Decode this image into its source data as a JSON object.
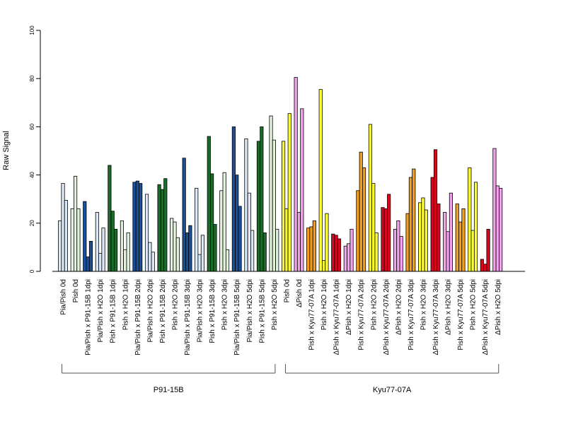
{
  "chart_data": {
    "type": "bar",
    "title": "",
    "xlabel": "",
    "ylabel": "Raw Signal",
    "ylim": [
      0,
      100
    ],
    "yticks": [
      0,
      20,
      40,
      60,
      80,
      100
    ],
    "grid": false,
    "legend": "none",
    "colors": {
      "light_blue": "#dbe8f7",
      "dark_blue": "#1a4f9a",
      "light_green": "#e2f2dc",
      "dark_green": "#1c6b2a",
      "yellow": "#ffff33",
      "orange": "#f49f1c",
      "red": "#d7081e",
      "pink": "#f3a3ec"
    },
    "categories": [
      {
        "label": "Pia/Pish 0d",
        "color": "light_blue",
        "values": [
          21,
          36.5,
          29.5
        ]
      },
      {
        "label": "Pish 0d",
        "color": "light_green",
        "values": [
          26,
          39.5,
          26
        ]
      },
      {
        "label": "Pia/Pish x P91-15B 1dpi",
        "color": "dark_blue",
        "values": [
          29,
          6,
          12.5
        ]
      },
      {
        "label": "Pia/Pish x H2O 1dpi",
        "color": "light_blue",
        "values": [
          24.5,
          7.5,
          18
        ]
      },
      {
        "label": "Pish x P91-15B 1dpi",
        "color": "dark_green",
        "values": [
          44,
          25,
          17.5
        ]
      },
      {
        "label": "Pish x H2O 1dpi",
        "color": "light_green",
        "values": [
          21,
          9,
          16
        ]
      },
      {
        "label": "Pia/Pish x P91-15B 2dpi",
        "color": "dark_blue",
        "values": [
          37,
          37.5,
          36.5
        ]
      },
      {
        "label": "Pia/Pish x H2O 2dpi",
        "color": "light_blue",
        "values": [
          32,
          12,
          8
        ]
      },
      {
        "label": "Pish x P91-15B 2dpi",
        "color": "dark_green",
        "values": [
          36,
          34,
          38.5
        ]
      },
      {
        "label": "Pish x H2O 2dpi",
        "color": "light_green",
        "values": [
          22,
          20.5,
          14
        ]
      },
      {
        "label": "Pia/Pish x P91-15B 3dpi",
        "color": "dark_blue",
        "values": [
          47,
          16,
          19
        ]
      },
      {
        "label": "Pia/Pish x H2O 3dpi",
        "color": "light_blue",
        "values": [
          34.5,
          7,
          15
        ]
      },
      {
        "label": "Pish x P91-15B 3dpi",
        "color": "dark_green",
        "values": [
          56,
          40.5,
          19.5
        ]
      },
      {
        "label": "Pish x H2O 3dpi",
        "color": "light_green",
        "values": [
          33.5,
          41,
          9
        ]
      },
      {
        "label": "Pia/Pish x P91-15B 5dpi",
        "color": "dark_blue",
        "values": [
          60,
          40,
          27
        ]
      },
      {
        "label": "Pia/Pish x H2O 5dpi",
        "color": "light_blue",
        "values": [
          55,
          32.5,
          17
        ]
      },
      {
        "label": "Pish x P91-15B 5dpi",
        "color": "dark_green",
        "values": [
          54,
          60,
          16
        ]
      },
      {
        "label": "Pish x H2O 5dpi",
        "color": "light_green",
        "values": [
          64.5,
          54.5,
          17.5
        ]
      },
      {
        "label": "Pish 0d",
        "color": "yellow",
        "values": [
          54,
          26,
          65.5
        ]
      },
      {
        "label": "ΔPish 0d",
        "color": "pink",
        "values": [
          80.5,
          24.5,
          67.5
        ]
      },
      {
        "label": "Pish x Kyu77-07A 1dpi",
        "color": "orange",
        "values": [
          18,
          18.5,
          21
        ]
      },
      {
        "label": "Pish x H2O 1dpi",
        "color": "yellow",
        "values": [
          75.5,
          4.5,
          24
        ]
      },
      {
        "label": "ΔPish x Kyu77-07A 1dpi",
        "color": "red",
        "values": [
          15.5,
          15,
          13.5
        ]
      },
      {
        "label": "ΔPish x H2O 1dpi",
        "color": "pink",
        "values": [
          10.5,
          11.5,
          17.5
        ]
      },
      {
        "label": "Pish x Kyu77-07A 2dpi",
        "color": "orange",
        "values": [
          33.5,
          49.5,
          43
        ]
      },
      {
        "label": "Pish x H2O 2dpi",
        "color": "yellow",
        "values": [
          61,
          36.5,
          16
        ]
      },
      {
        "label": "ΔPish x Kyu77-07A 2dpi",
        "color": "red",
        "values": [
          26.5,
          26,
          32
        ]
      },
      {
        "label": "ΔPish x H2O 2dpi",
        "color": "pink",
        "values": [
          17.5,
          21,
          14.5
        ]
      },
      {
        "label": "Pish x Kyu77-07A 3dpi",
        "color": "orange",
        "values": [
          24,
          39,
          42.5
        ]
      },
      {
        "label": "Pish x H2O 3dpi",
        "color": "yellow",
        "values": [
          28.5,
          30.5,
          25.5
        ]
      },
      {
        "label": "ΔPish x Kyu77-07A 3dpi",
        "color": "red",
        "values": [
          39,
          50.5,
          28
        ]
      },
      {
        "label": "ΔPish x H2O 3dpi",
        "color": "pink",
        "values": [
          24.5,
          16.5,
          32.5
        ]
      },
      {
        "label": "Pish x Kyu77-07A 5dpi",
        "color": "orange",
        "values": [
          28,
          20.5,
          26
        ]
      },
      {
        "label": "Pish x H2O 5dpi",
        "color": "yellow",
        "values": [
          43,
          17,
          37
        ]
      },
      {
        "label": "ΔPish x Kyu77-07A 5dpi",
        "color": "red",
        "values": [
          5,
          3,
          17.5
        ]
      },
      {
        "label": "ΔPish x H2O 5dpi",
        "color": "pink",
        "values": [
          51,
          35.5,
          34.5
        ]
      }
    ],
    "groups": [
      {
        "label": "P91-15B",
        "from": 0,
        "to": 17
      },
      {
        "label": "Kyu77-07A",
        "from": 18,
        "to": 35
      }
    ]
  }
}
